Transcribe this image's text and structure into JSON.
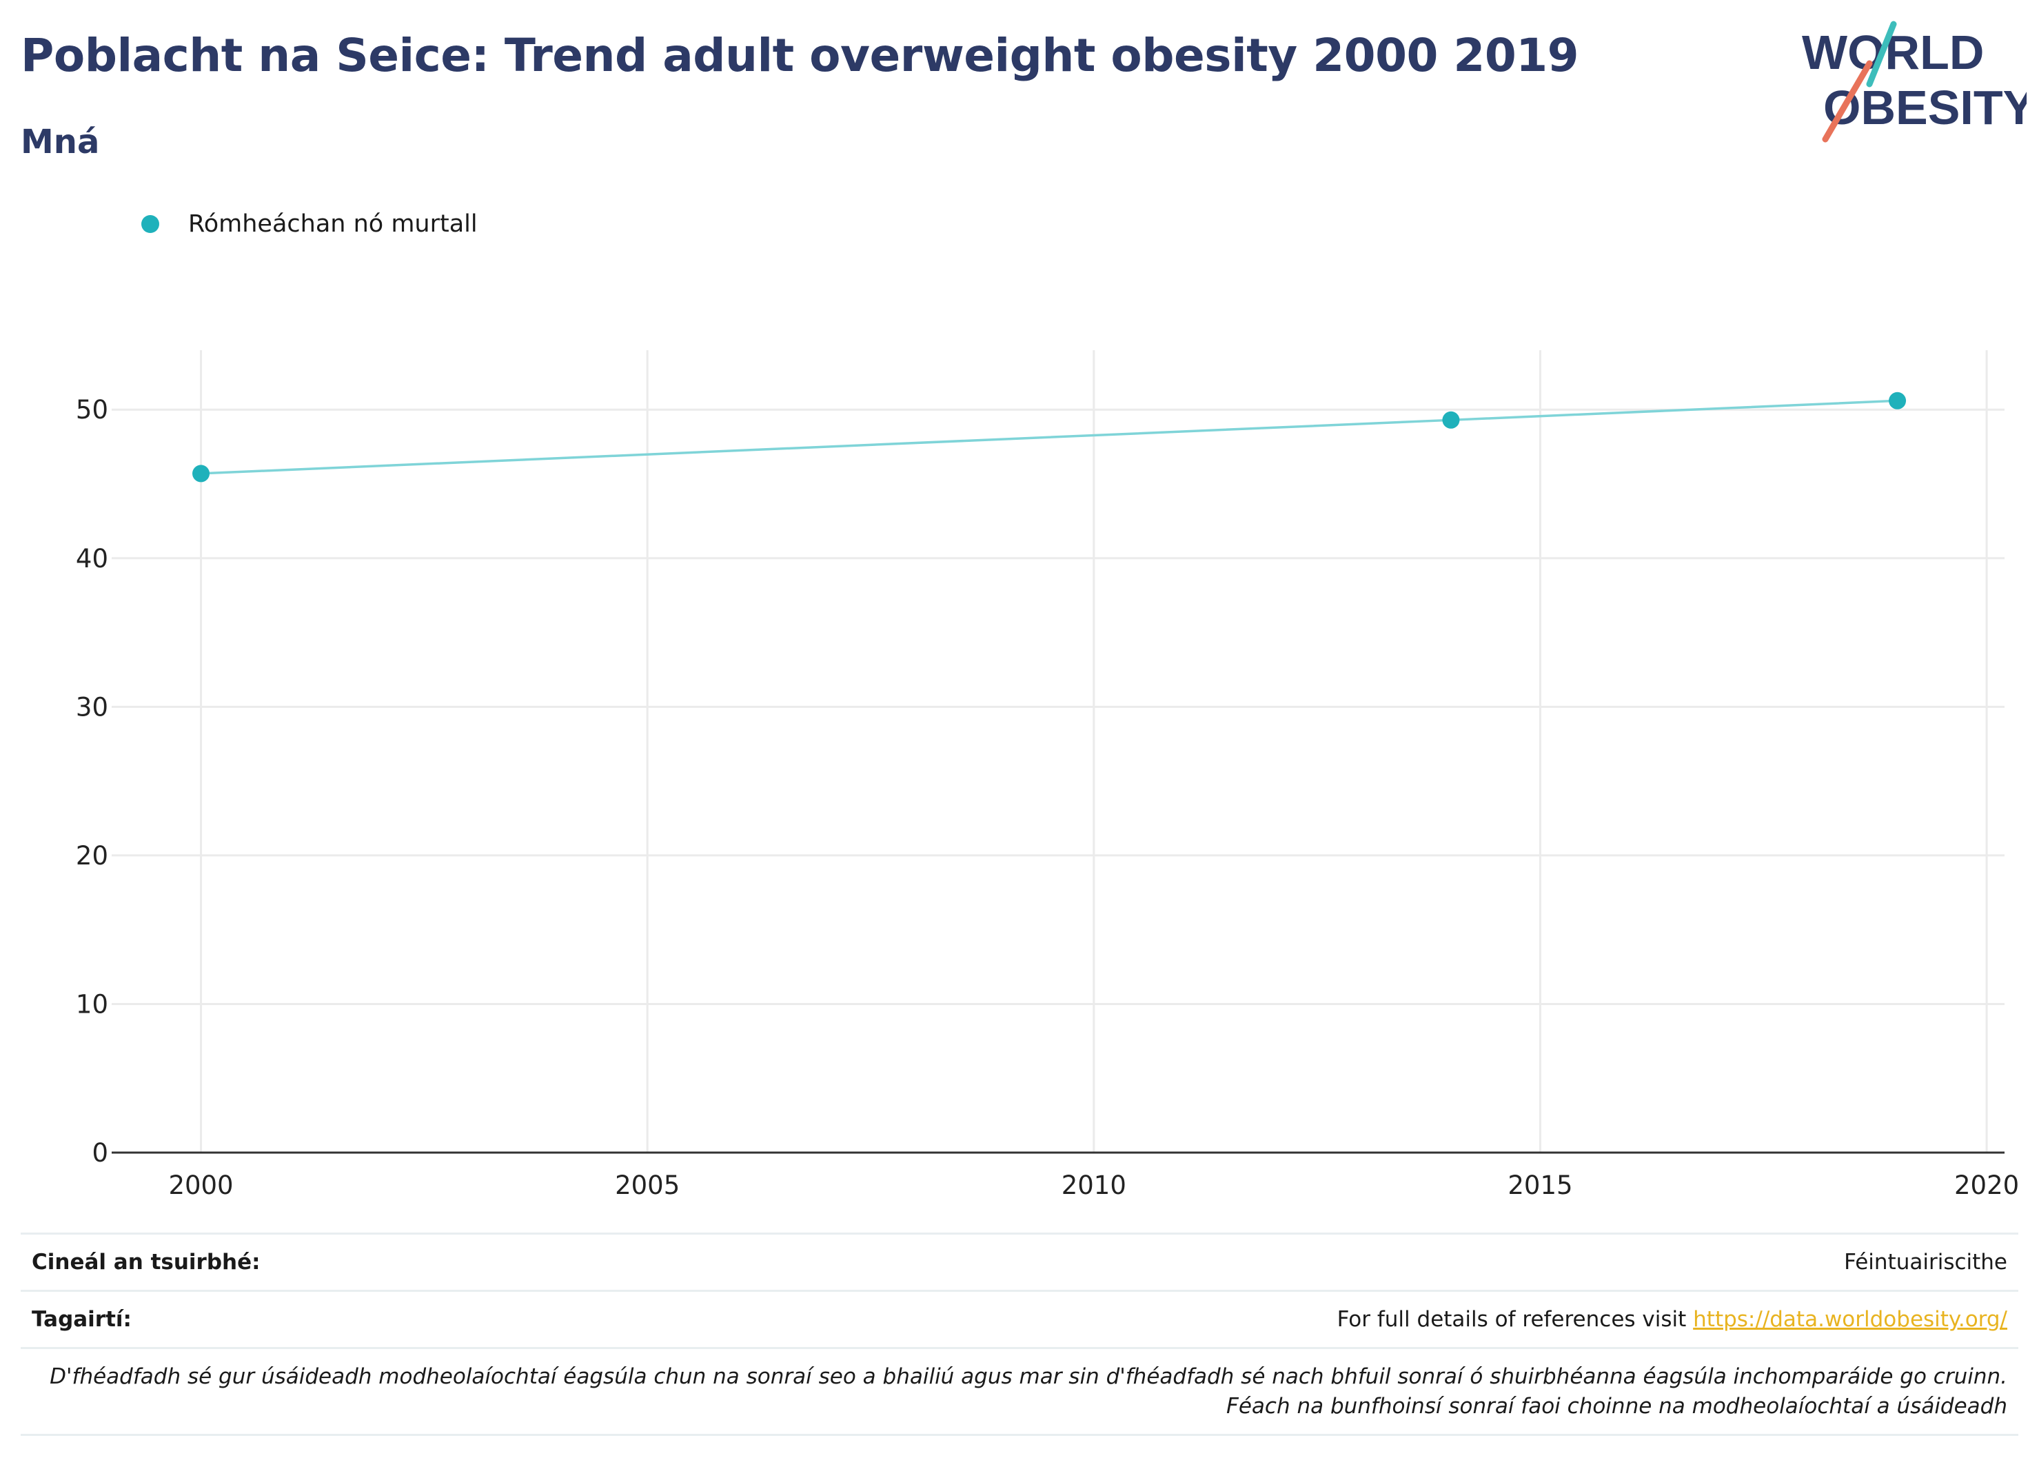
{
  "header": {
    "title": "Poblacht na Seice: Trend adult overweight obesity 2000 2019",
    "subtitle": "Mná"
  },
  "logo": {
    "line1": "WORLD",
    "line2": "OBESITY",
    "accent1": "#3dbdbb",
    "accent2": "#e8735a",
    "text_color": "#2d3a66"
  },
  "legend": {
    "label": "Rómheáchan nó murtall",
    "color": "#1fb1bb"
  },
  "chart_data": {
    "type": "line",
    "title": "Poblacht na Seice: Trend adult overweight obesity 2000 2019",
    "subtitle": "Mná",
    "x": [
      2000,
      2014,
      2019
    ],
    "series": [
      {
        "name": "Rómheáchan nó murtall",
        "values": [
          45.7,
          49.3,
          50.6
        ],
        "color": "#1fb1bb",
        "line_color": "#7fd4d8"
      }
    ],
    "xlim": [
      1999,
      2020.2
    ],
    "ylim": [
      0,
      54
    ],
    "x_ticks": [
      2000,
      2005,
      2010,
      2015,
      2020
    ],
    "y_ticks": [
      0,
      10,
      20,
      30,
      40,
      50
    ],
    "grid": true,
    "legend_position": "top-left"
  },
  "footer": {
    "survey_label": "Cineál an tsuirbhé:",
    "survey_value": "Féintuairiscithe",
    "refs_label": "Tagairtí:",
    "refs_text": "For full details of references visit ",
    "refs_link": "https://data.worldobesity.org/",
    "note_line1": "D'fhéadfadh sé gur úsáideadh modheolaíochtaí éagsúla chun na sonraí seo a bhailiú agus mar sin d'fhéadfadh sé nach bhfuil sonraí ó shuirbhéanna éagsúla inchomparáide go cruinn.",
    "note_line2": "Féach na bunfhoinsí sonraí faoi choinne na modheolaíochtaí a úsáideadh"
  }
}
